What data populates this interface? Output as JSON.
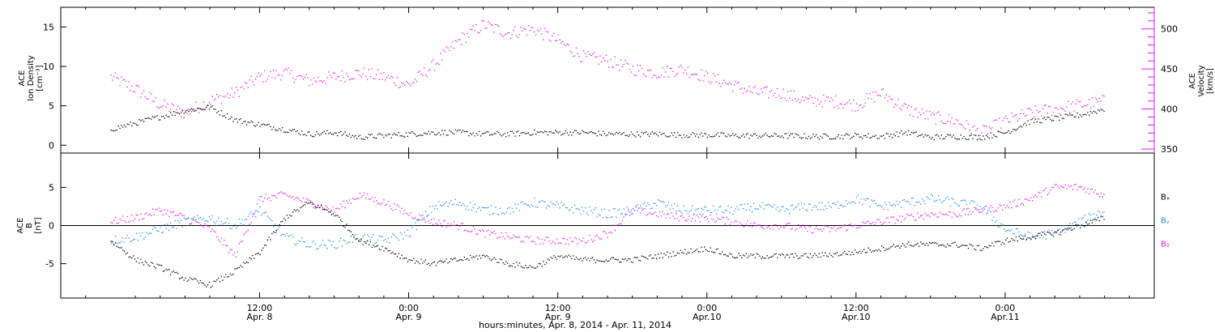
{
  "chart_data": [
    {
      "type": "scatter",
      "panel": "top",
      "ylabel_left": [
        "ACE",
        "Ion Density",
        "[cm⁻³]"
      ],
      "ylabel_right": [
        "ACE",
        "Velocity",
        "[km/s]"
      ],
      "ylim_left": [
        -1,
        17.5
      ],
      "ylim_right": [
        345,
        527
      ],
      "yticks_left": [
        0,
        5,
        10,
        15
      ],
      "yticks_right": [
        350,
        400,
        450,
        500
      ],
      "right_axis_color": "#e815e8",
      "series": [
        {
          "color": "#000000",
          "axis": "left",
          "x": [
            0,
            2,
            4,
            6,
            8,
            10,
            12,
            14,
            16,
            18,
            20,
            22,
            24,
            26,
            28,
            30,
            32,
            34,
            36,
            38,
            40,
            42,
            44,
            46,
            48,
            50,
            52,
            54,
            56,
            58,
            60,
            62,
            64,
            66,
            68,
            70,
            72,
            74,
            76,
            78,
            80
          ],
          "y": [
            2.0,
            2.8,
            3.6,
            4.4,
            4.8,
            3.2,
            2.6,
            2.0,
            1.4,
            1.6,
            1.0,
            1.2,
            1.4,
            1.6,
            1.6,
            1.4,
            1.4,
            1.6,
            1.6,
            1.6,
            1.4,
            1.4,
            1.4,
            1.3,
            1.3,
            1.2,
            1.2,
            1.2,
            1.1,
            1.1,
            1.2,
            1.1,
            1.6,
            1.0,
            1.1,
            1.0,
            1.6,
            3.0,
            3.4,
            3.8,
            4.6
          ]
        },
        {
          "color": "#e815e8",
          "axis": "right",
          "x": [
            0,
            2,
            4,
            6,
            8,
            10,
            12,
            14,
            16,
            18,
            20,
            22,
            24,
            26,
            28,
            30,
            32,
            34,
            36,
            38,
            40,
            42,
            44,
            46,
            48,
            50,
            52,
            54,
            56,
            58,
            60,
            62,
            64,
            66,
            68,
            70,
            72,
            74,
            76,
            78,
            80
          ],
          "y": [
            440,
            425,
            405,
            395,
            410,
            420,
            440,
            445,
            435,
            440,
            445,
            440,
            430,
            455,
            485,
            505,
            495,
            500,
            485,
            465,
            460,
            450,
            445,
            450,
            440,
            430,
            420,
            420,
            410,
            410,
            405,
            420,
            400,
            390,
            385,
            370,
            385,
            395,
            400,
            405,
            410
          ]
        }
      ]
    },
    {
      "type": "scatter",
      "panel": "bottom",
      "ylabel_left": [
        "ACE",
        "B",
        "[nT]"
      ],
      "ylim": [
        -9.5,
        9.5
      ],
      "yticks": [
        -5,
        0,
        5
      ],
      "legend": [
        "Bₓ",
        "Bᵧ",
        "B₂"
      ],
      "series": [
        {
          "color": "#000000",
          "x": [
            0,
            2,
            4,
            6,
            8,
            10,
            12,
            14,
            16,
            18,
            20,
            22,
            24,
            26,
            28,
            30,
            32,
            34,
            36,
            38,
            40,
            42,
            44,
            46,
            48,
            50,
            52,
            54,
            56,
            58,
            60,
            62,
            64,
            66,
            68,
            70,
            72,
            74,
            76,
            78,
            80
          ],
          "y": [
            -2.0,
            -4.5,
            -5.5,
            -7.0,
            -7.8,
            -6.0,
            -3.5,
            1.0,
            3.0,
            1.5,
            -2.0,
            -3.0,
            -4.5,
            -5.0,
            -4.5,
            -4.0,
            -5.0,
            -5.5,
            -4.0,
            -4.5,
            -4.5,
            -4.5,
            -4.0,
            -3.5,
            -3.0,
            -4.0,
            -4.0,
            -4.0,
            -4.0,
            -3.8,
            -3.5,
            -3.0,
            -2.5,
            -2.5,
            -2.5,
            -3.0,
            -2.0,
            -1.5,
            -1.0,
            0.0,
            1.0
          ]
        },
        {
          "color": "#1f8fe0",
          "x": [
            0,
            2,
            4,
            6,
            8,
            10,
            12,
            14,
            16,
            18,
            20,
            22,
            24,
            26,
            28,
            30,
            32,
            34,
            36,
            38,
            40,
            42,
            44,
            46,
            48,
            50,
            52,
            54,
            56,
            58,
            60,
            62,
            64,
            66,
            68,
            70,
            72,
            74,
            76,
            78,
            80
          ],
          "y": [
            -2.0,
            -1.5,
            -0.5,
            0.5,
            1.0,
            0.0,
            2.0,
            -1.5,
            -2.5,
            -2.5,
            -1.5,
            -2.0,
            -1.0,
            2.5,
            3.0,
            2.0,
            2.0,
            3.0,
            2.5,
            2.0,
            1.5,
            2.0,
            3.0,
            2.0,
            2.0,
            2.0,
            2.5,
            2.0,
            2.5,
            2.5,
            3.5,
            2.5,
            3.0,
            3.5,
            3.0,
            2.5,
            -0.5,
            -1.5,
            -1.0,
            0.5,
            2.0
          ]
        },
        {
          "color": "#e815e8",
          "x": [
            0,
            2,
            4,
            6,
            8,
            10,
            12,
            14,
            16,
            18,
            20,
            22,
            24,
            26,
            28,
            30,
            32,
            34,
            36,
            38,
            40,
            42,
            44,
            46,
            48,
            50,
            52,
            54,
            56,
            58,
            60,
            62,
            64,
            66,
            68,
            70,
            72,
            74,
            76,
            78,
            80
          ],
          "y": [
            0.5,
            1.0,
            2.0,
            1.0,
            -0.5,
            -4.0,
            3.5,
            4.0,
            3.0,
            2.0,
            4.0,
            3.0,
            1.5,
            0.5,
            0.0,
            -1.0,
            -1.5,
            -2.0,
            -2.0,
            -2.0,
            -1.0,
            2.0,
            1.5,
            1.0,
            1.0,
            0.5,
            0.0,
            0.0,
            -0.5,
            -0.5,
            0.0,
            0.5,
            1.0,
            1.5,
            1.5,
            2.0,
            2.5,
            3.5,
            5.0,
            5.0,
            4.0
          ]
        }
      ]
    }
  ],
  "x_axis": {
    "range_hours": [
      -4,
      84
    ],
    "ticks": [
      {
        "h": 12,
        "time": "12:00",
        "date": "Apr. 8"
      },
      {
        "h": 24,
        "time": "0:00",
        "date": "Apr. 9"
      },
      {
        "h": 36,
        "time": "12:00",
        "date": "Apr. 9"
      },
      {
        "h": 48,
        "time": "0:00",
        "date": "Apr.10"
      },
      {
        "h": 60,
        "time": "12:00",
        "date": "Apr.10"
      },
      {
        "h": 72,
        "time": "0:00",
        "date": "Apr.11"
      }
    ],
    "xlabel": "hours:minutes, Apr.  8, 2014 - Apr. 11, 2014"
  }
}
